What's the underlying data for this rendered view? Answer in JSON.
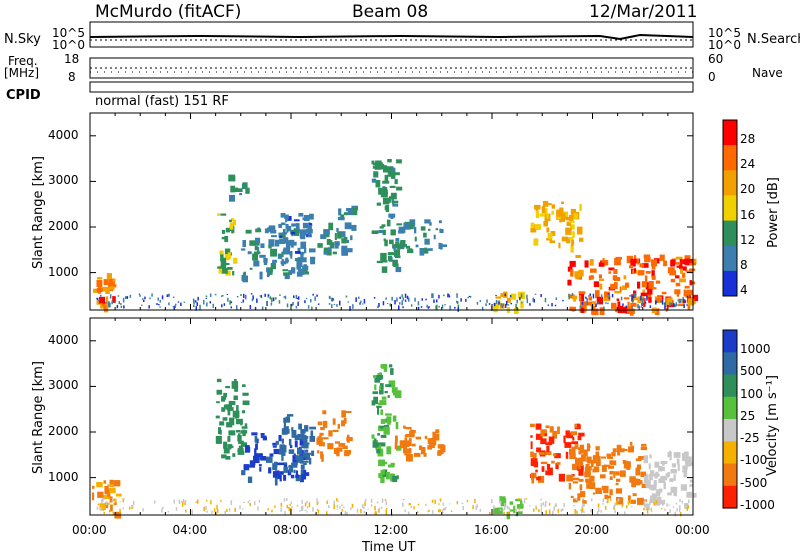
{
  "header": {
    "station": "McMurdo (fitACF)",
    "beam": "Beam 08",
    "date": "12/Mar/2011",
    "left_top_label": "N.Sky",
    "right_top_label": "N.Search",
    "left_mid_label_1": "Freq.",
    "left_mid_label_2": "[MHz]",
    "right_mid_label": "Nave",
    "cpid_label": "CPID",
    "mode": "normal (fast) 151 RF",
    "noise_ticks": [
      "10^5",
      "10^0"
    ],
    "freq_ticks": [
      "18",
      "8"
    ],
    "nave_ticks": [
      "60",
      "0"
    ],
    "search_ticks": [
      "10^5",
      "10^0"
    ]
  },
  "panels": {
    "power": {
      "ylabel": "Slant Range [km]",
      "cbar_label": "Power [dB]",
      "cbar_ticks": [
        "28",
        "24",
        "20",
        "16",
        "12",
        "8",
        "4"
      ],
      "cbar_colors": [
        "#ff0000",
        "#ff6a00",
        "#f2a000",
        "#f0d000",
        "#2e8f5a",
        "#3c7fae",
        "#1830d8"
      ]
    },
    "velocity": {
      "ylabel": "Slant Range [km]",
      "cbar_label": "Velocity [m s⁻¹]",
      "cbar_ticks": [
        "1000",
        "500",
        "100",
        "25",
        "-25",
        "-100",
        "-500",
        "-1000"
      ],
      "cbar_colors": [
        "#1a3cc8",
        "#2f6aa5",
        "#2e8f5a",
        "#57c13d",
        "#c8c8c8",
        "#f5b000",
        "#f07a10",
        "#ff2000"
      ]
    },
    "yticks": [
      "4000",
      "3000",
      "2000",
      "1000"
    ],
    "xticks": [
      "00:00",
      "04:00",
      "08:00",
      "12:00",
      "16:00",
      "20:00",
      "00:00"
    ],
    "xlabel": "Time UT"
  },
  "chart_data": {
    "type": "heatmap",
    "title": "McMurdo (fitACF) Beam 08 12/Mar/2011",
    "xlabel": "Time UT",
    "ylabel": "Slant Range [km]",
    "x_range_hours": [
      0,
      24
    ],
    "ylim_km": [
      180,
      4500
    ],
    "series": [
      {
        "name": "Power [dB]",
        "scale": [
          0,
          30
        ],
        "patches": [
          {
            "t": [
              0.0,
              1.1
            ],
            "r": [
              250,
              1000
            ],
            "v": 24
          },
          {
            "t": [
              5.0,
              5.7
            ],
            "r": [
              1000,
              2500
            ],
            "v": 14
          },
          {
            "t": [
              5.5,
              6.2
            ],
            "r": [
              2700,
              3200
            ],
            "v": 12
          },
          {
            "t": [
              6.0,
              8.5
            ],
            "r": [
              900,
              2100
            ],
            "v": 10
          },
          {
            "t": [
              7.5,
              8.8
            ],
            "r": [
              1300,
              2400
            ],
            "v": 8
          },
          {
            "t": [
              9.0,
              9.8
            ],
            "r": [
              1400,
              2100
            ],
            "v": 12
          },
          {
            "t": [
              9.8,
              10.5
            ],
            "r": [
              1500,
              2500
            ],
            "v": 10
          },
          {
            "t": [
              11.2,
              12.2
            ],
            "r": [
              1000,
              3500
            ],
            "v": 12
          },
          {
            "t": [
              12.0,
              14.0
            ],
            "r": [
              1500,
              2200
            ],
            "v": 10
          },
          {
            "t": [
              16.0,
              17.2
            ],
            "r": [
              200,
              600
            ],
            "v": 20
          },
          {
            "t": [
              17.5,
              19.5
            ],
            "r": [
              1600,
              2600
            ],
            "v": 20
          },
          {
            "t": [
              19.0,
              24.0
            ],
            "r": [
              200,
              1400
            ],
            "v": 26
          }
        ]
      },
      {
        "name": "Velocity [m s⁻¹]",
        "scale": [
          -1000,
          1000
        ],
        "patches": [
          {
            "t": [
              0.0,
              1.1
            ],
            "r": [
              250,
              1000
            ],
            "v": -100
          },
          {
            "t": [
              5.0,
              6.2
            ],
            "r": [
              1400,
              3200
            ],
            "v": 80
          },
          {
            "t": [
              6.0,
              8.5
            ],
            "r": [
              1000,
              2000
            ],
            "v": 800
          },
          {
            "t": [
              7.5,
              8.8
            ],
            "r": [
              1100,
              2400
            ],
            "v": 600
          },
          {
            "t": [
              9.0,
              10.3
            ],
            "r": [
              1500,
              2500
            ],
            "v": -300
          },
          {
            "t": [
              11.2,
              12.2
            ],
            "r": [
              1000,
              3500
            ],
            "v": 60
          },
          {
            "t": [
              12.0,
              14.0
            ],
            "r": [
              1500,
              2200
            ],
            "v": -200
          },
          {
            "t": [
              16.0,
              17.2
            ],
            "r": [
              200,
              600
            ],
            "v": 50
          },
          {
            "t": [
              17.5,
              19.5
            ],
            "r": [
              1000,
              2200
            ],
            "v": -500
          },
          {
            "t": [
              19.0,
              22.0
            ],
            "r": [
              500,
              1800
            ],
            "v": -400
          },
          {
            "t": [
              22.0,
              24.0
            ],
            "r": [
              400,
              1600
            ],
            "v": 0
          }
        ]
      }
    ]
  }
}
